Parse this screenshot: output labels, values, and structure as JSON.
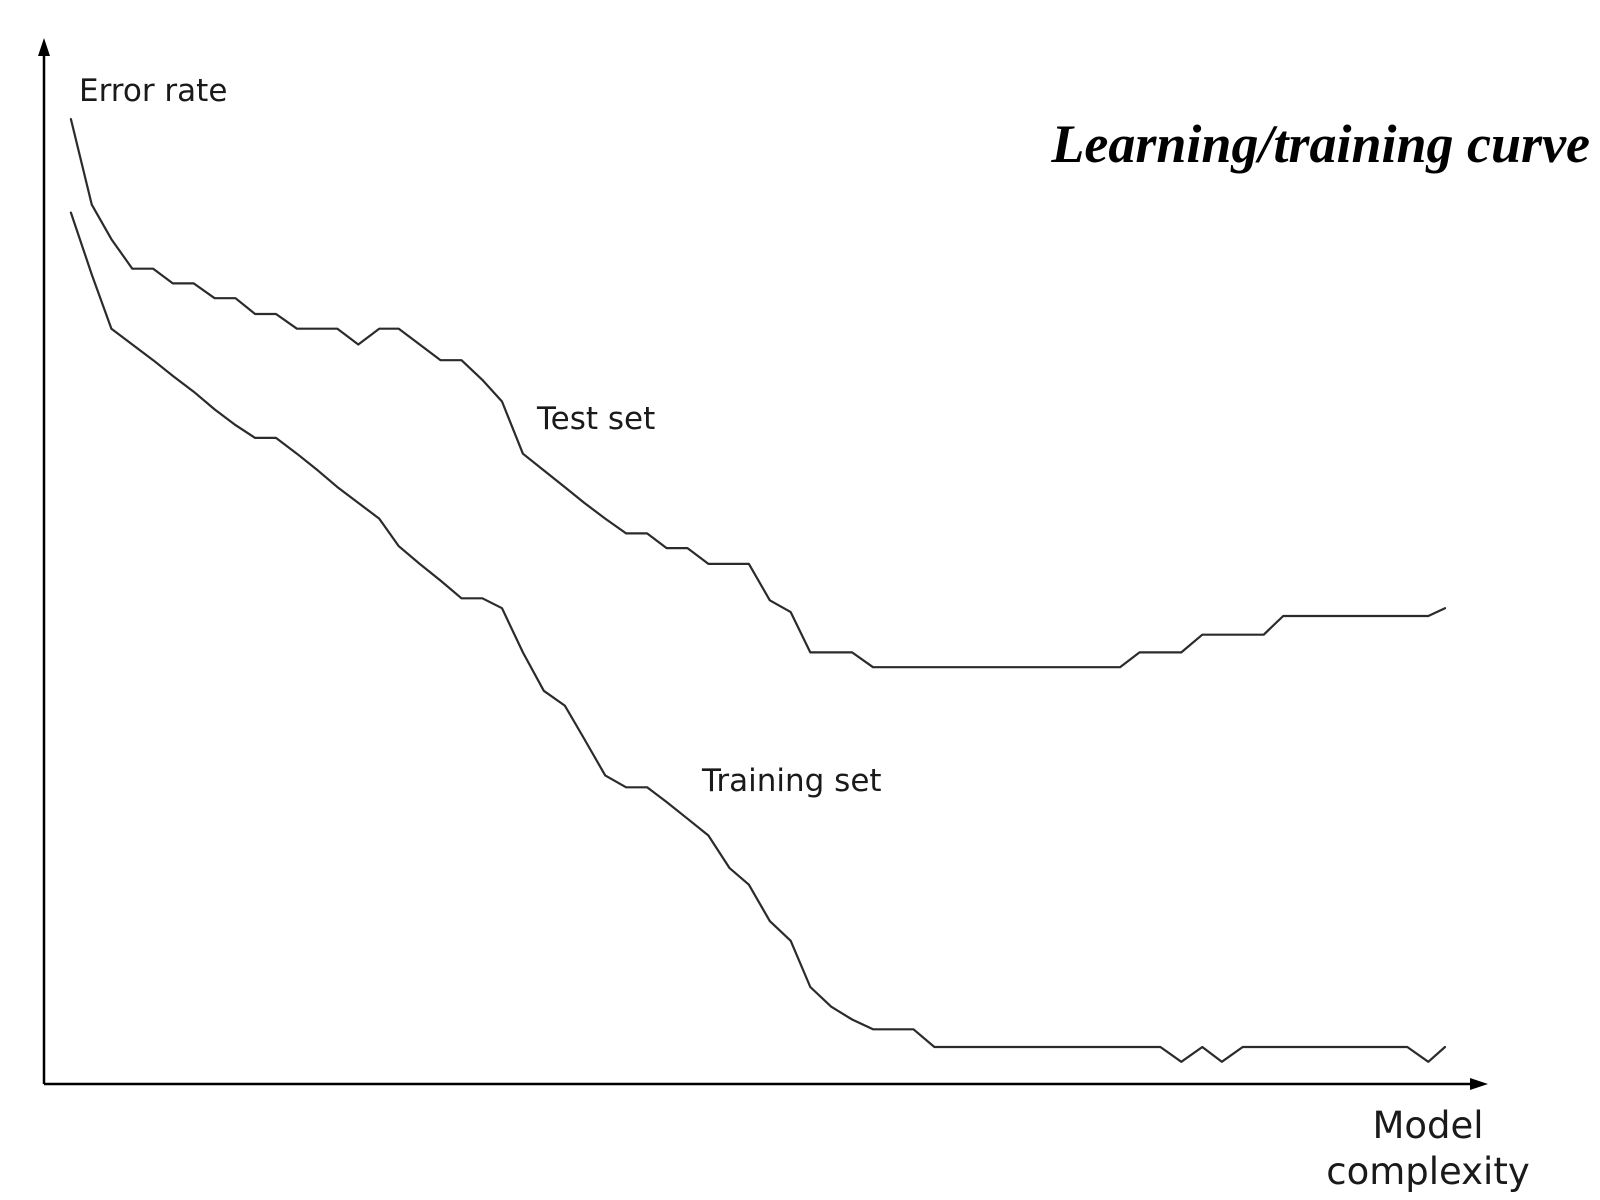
{
  "chart_data": {
    "type": "line",
    "title": "Learning/training curve",
    "ylabel": "Error rate",
    "xlabel_lines": [
      "Model",
      "complexity"
    ],
    "x_ticks": "none",
    "y_ticks": "none",
    "grid": false,
    "xlim": [
      0,
      100
    ],
    "ylim": [
      0,
      100
    ],
    "series": [
      {
        "name": "Test set",
        "color": "#2b2b2b",
        "points": [
          [
            1.5,
            94.5
          ],
          [
            3.0,
            85.8
          ],
          [
            4.4,
            82.3
          ],
          [
            5.9,
            79.3
          ],
          [
            7.4,
            79.3
          ],
          [
            8.8,
            77.8
          ],
          [
            10.3,
            77.8
          ],
          [
            11.8,
            76.3
          ],
          [
            13.3,
            76.3
          ],
          [
            14.7,
            74.7
          ],
          [
            16.2,
            74.7
          ],
          [
            17.7,
            73.2
          ],
          [
            19.2,
            73.2
          ],
          [
            20.6,
            73.2
          ],
          [
            22.1,
            71.6
          ],
          [
            23.6,
            73.2
          ],
          [
            25.0,
            73.2
          ],
          [
            26.5,
            71.6
          ],
          [
            28.0,
            70.0
          ],
          [
            29.5,
            70.0
          ],
          [
            31.0,
            68.0
          ],
          [
            32.4,
            65.8
          ],
          [
            33.9,
            60.5
          ],
          [
            35.4,
            58.8
          ],
          [
            36.9,
            57.1
          ],
          [
            38.3,
            55.5
          ],
          [
            39.8,
            53.9
          ],
          [
            41.3,
            52.4
          ],
          [
            42.8,
            52.4
          ],
          [
            44.2,
            50.9
          ],
          [
            45.7,
            50.9
          ],
          [
            47.2,
            49.3
          ],
          [
            48.7,
            49.3
          ],
          [
            50.1,
            49.3
          ],
          [
            51.6,
            45.6
          ],
          [
            53.1,
            44.4
          ],
          [
            54.5,
            40.3
          ],
          [
            56.0,
            40.3
          ],
          [
            57.5,
            40.3
          ],
          [
            59.0,
            38.8
          ],
          [
            60.4,
            38.8
          ],
          [
            76.7,
            38.8
          ],
          [
            78.1,
            40.3
          ],
          [
            79.6,
            40.3
          ],
          [
            81.1,
            40.3
          ],
          [
            82.6,
            42.1
          ],
          [
            84.0,
            42.1
          ],
          [
            85.5,
            42.1
          ],
          [
            87.0,
            42.1
          ],
          [
            88.4,
            44.0
          ],
          [
            89.9,
            44.0
          ],
          [
            98.8,
            44.0
          ],
          [
            100.0,
            44.8
          ]
        ]
      },
      {
        "name": "Training set",
        "color": "#2b2b2b",
        "points": [
          [
            1.5,
            85.0
          ],
          [
            3.0,
            78.7
          ],
          [
            4.4,
            73.2
          ],
          [
            5.9,
            71.6
          ],
          [
            7.4,
            70.0
          ],
          [
            8.8,
            68.4
          ],
          [
            10.3,
            66.8
          ],
          [
            11.8,
            65.0
          ],
          [
            13.3,
            63.4
          ],
          [
            14.7,
            62.1
          ],
          [
            16.2,
            62.1
          ],
          [
            17.7,
            60.5
          ],
          [
            19.2,
            58.8
          ],
          [
            20.6,
            57.1
          ],
          [
            22.1,
            55.5
          ],
          [
            23.6,
            53.9
          ],
          [
            25.0,
            51.1
          ],
          [
            26.5,
            49.3
          ],
          [
            28.0,
            47.6
          ],
          [
            29.5,
            45.8
          ],
          [
            31.0,
            45.8
          ],
          [
            32.4,
            44.8
          ],
          [
            33.9,
            40.3
          ],
          [
            35.4,
            36.4
          ],
          [
            36.9,
            34.9
          ],
          [
            38.3,
            31.5
          ],
          [
            39.8,
            27.8
          ],
          [
            41.3,
            26.6
          ],
          [
            42.8,
            26.6
          ],
          [
            44.2,
            25.1
          ],
          [
            45.7,
            23.4
          ],
          [
            47.2,
            21.7
          ],
          [
            48.7,
            18.4
          ],
          [
            50.1,
            16.7
          ],
          [
            51.6,
            13.0
          ],
          [
            53.1,
            11.0
          ],
          [
            54.5,
            6.3
          ],
          [
            56.0,
            4.3
          ],
          [
            57.5,
            3.0
          ],
          [
            59.0,
            2.0
          ],
          [
            60.4,
            2.0
          ],
          [
            61.9,
            2.0
          ],
          [
            63.4,
            0.2
          ],
          [
            79.6,
            0.2
          ],
          [
            81.1,
            -1.3
          ],
          [
            82.6,
            0.2
          ],
          [
            84.0,
            -1.3
          ],
          [
            85.5,
            0.2
          ],
          [
            97.3,
            0.2
          ],
          [
            98.8,
            -1.3
          ],
          [
            100.0,
            0.2
          ]
        ]
      }
    ]
  }
}
